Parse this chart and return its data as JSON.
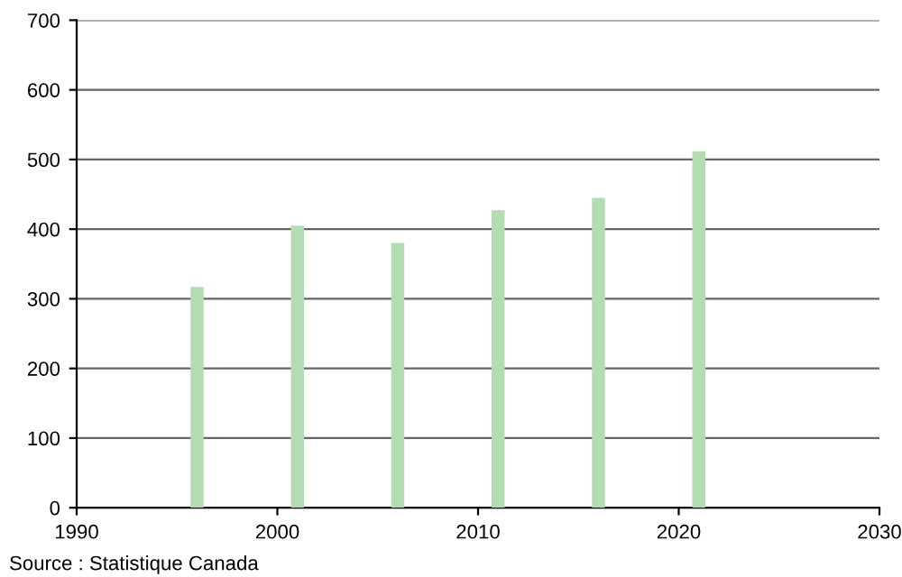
{
  "chart_data": {
    "type": "bar",
    "x": [
      1996,
      2001,
      2006,
      2011,
      2016,
      2021
    ],
    "values": [
      317,
      405,
      380,
      427,
      445,
      512
    ],
    "color": "#b3dcb3",
    "xlim": [
      1990,
      2030
    ],
    "xticks": [
      1990,
      2000,
      2010,
      2020,
      2030
    ],
    "ylim": [
      0,
      700
    ],
    "yticks": [
      0,
      100,
      200,
      300,
      400,
      500,
      600,
      700
    ],
    "grid": "y",
    "annotations": [
      "Source : Statistique Canada"
    ]
  }
}
